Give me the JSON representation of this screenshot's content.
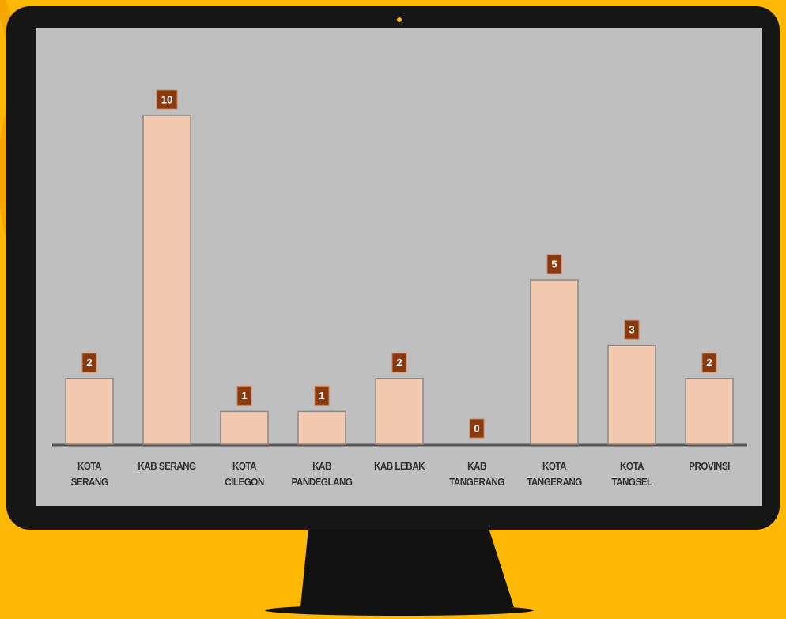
{
  "chart_data": {
    "type": "bar",
    "categories": [
      "KOTA\nSERANG",
      "KAB SERANG",
      "KOTA\nCILEGON",
      "KAB\nPANDEGLANG",
      "KAB LEBAK",
      "KAB\nTANGERANG",
      "KOTA\nTANGERANG",
      "KOTA\nTANGSEL",
      "PROVINSI"
    ],
    "values": [
      2,
      10,
      1,
      1,
      2,
      0,
      5,
      3,
      2
    ],
    "color": "#f2c9ae",
    "label_color": "#8b3a10"
  }
}
